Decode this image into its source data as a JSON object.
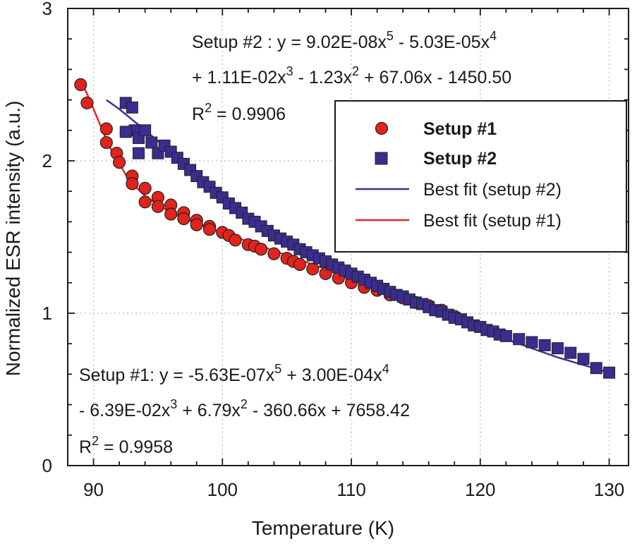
{
  "chart_data": {
    "type": "scatter",
    "xlabel": "Temperature (K)",
    "ylabel": "Normalized ESR intensity (a.u.)",
    "xlim": [
      88,
      131.5
    ],
    "ylim": [
      0,
      3
    ],
    "xticks": [
      90,
      100,
      110,
      120,
      130
    ],
    "yticks": [
      0,
      1,
      2,
      3
    ],
    "grid": true,
    "legend_position": "top-right",
    "colors": {
      "setup1": "#e0231c",
      "setup2": "#3a2d8f",
      "fit1": "#e8242a",
      "fit2": "#3f2f9a",
      "grid": "#bbbbbb",
      "axis": "#1a1a1a"
    },
    "series": [
      {
        "name": "Setup #1",
        "marker": "circle",
        "x": [
          89,
          89.5,
          91,
          91,
          91.8,
          92,
          93,
          93,
          94,
          94,
          95,
          95,
          96,
          96,
          97,
          97,
          98,
          98,
          99,
          99,
          100,
          100.5,
          101,
          102,
          102.5,
          103,
          104,
          105,
          105.5,
          106,
          107,
          108,
          109,
          110,
          111,
          112,
          113,
          114,
          115,
          116,
          117,
          118
        ],
        "y": [
          2.5,
          2.38,
          2.21,
          2.12,
          2.05,
          1.99,
          1.9,
          1.85,
          1.82,
          1.73,
          1.76,
          1.7,
          1.71,
          1.65,
          1.66,
          1.62,
          1.61,
          1.58,
          1.57,
          1.55,
          1.53,
          1.51,
          1.48,
          1.45,
          1.44,
          1.42,
          1.39,
          1.36,
          1.34,
          1.32,
          1.29,
          1.26,
          1.23,
          1.2,
          1.17,
          1.15,
          1.12,
          1.1,
          1.07,
          1.05,
          1.02,
          0.98
        ]
      },
      {
        "name": "Setup #2",
        "marker": "square",
        "x": [
          92.5,
          93,
          93.2,
          92.5,
          93.5,
          94.5,
          94,
          95,
          95.5,
          96,
          96.5,
          93.5,
          97,
          97.5,
          98,
          98.5,
          99,
          99.5,
          100,
          100.5,
          101,
          101.5,
          102,
          102.5,
          103,
          103.5,
          104,
          104.5,
          105,
          105.5,
          106,
          106.5,
          107,
          107.5,
          108,
          108.5,
          109,
          109.5,
          110,
          110.5,
          111,
          111.5,
          112,
          112.5,
          113,
          113.5,
          114,
          114.5,
          115,
          115.5,
          116,
          116.5,
          117,
          117.5,
          118,
          118.5,
          119,
          119.5,
          120,
          120.5,
          121,
          121.5,
          122,
          123,
          124,
          125,
          126,
          127,
          128,
          129,
          130
        ],
        "y": [
          2.38,
          2.35,
          2.2,
          2.19,
          2.15,
          2.12,
          2.2,
          2.05,
          2.1,
          2.06,
          2.02,
          2.05,
          1.98,
          1.94,
          1.9,
          1.86,
          1.83,
          1.79,
          1.76,
          1.72,
          1.69,
          1.66,
          1.62,
          1.6,
          1.57,
          1.54,
          1.51,
          1.49,
          1.47,
          1.45,
          1.42,
          1.4,
          1.38,
          1.36,
          1.34,
          1.32,
          1.3,
          1.28,
          1.26,
          1.24,
          1.22,
          1.2,
          1.18,
          1.16,
          1.14,
          1.12,
          1.11,
          1.09,
          1.07,
          1.06,
          1.04,
          1.02,
          1.01,
          0.99,
          0.97,
          0.96,
          0.94,
          0.92,
          0.91,
          0.89,
          0.88,
          0.86,
          0.85,
          0.83,
          0.81,
          0.79,
          0.77,
          0.74,
          0.7,
          0.64,
          0.61
        ]
      }
    ],
    "fits": [
      {
        "name": "Best fit (setup #2)",
        "x": [
          91,
          92,
          93,
          94,
          95,
          96,
          97,
          98,
          99,
          100,
          102,
          104,
          106,
          108,
          110,
          112,
          114,
          116,
          118,
          120,
          122,
          124,
          126,
          128,
          130
        ],
        "y": [
          2.4,
          2.34,
          2.27,
          2.2,
          2.13,
          2.06,
          1.99,
          1.92,
          1.85,
          1.78,
          1.64,
          1.52,
          1.41,
          1.31,
          1.23,
          1.15,
          1.08,
          1.01,
          0.95,
          0.89,
          0.83,
          0.77,
          0.71,
          0.66,
          0.61
        ]
      },
      {
        "name": "Best fit (setup #1)",
        "x": [
          89,
          89.5,
          90,
          90.5,
          91,
          91.5,
          92,
          92.5,
          93,
          93.5,
          94,
          95,
          96,
          97,
          98,
          99,
          100,
          102,
          104,
          106,
          108,
          110,
          112,
          114,
          116,
          118
        ],
        "y": [
          2.53,
          2.44,
          2.34,
          2.24,
          2.14,
          2.05,
          1.98,
          1.91,
          1.85,
          1.81,
          1.77,
          1.71,
          1.66,
          1.62,
          1.59,
          1.56,
          1.53,
          1.47,
          1.41,
          1.35,
          1.29,
          1.22,
          1.15,
          1.09,
          1.02,
          0.95
        ]
      }
    ],
    "legend": {
      "entries": [
        "Setup #1",
        "Setup #2",
        "Best fit (setup #2)",
        "Best fit (setup #1)"
      ]
    },
    "annotations": {
      "setup2": {
        "line1_a": "Setup #2 : y = 9.02E-08x",
        "line1_sup1": "5",
        "line1_b": " - 5.03E-05x",
        "line1_sup2": "4",
        "line2_a": "+ 1.11E-02x",
        "line2_sup1": "3",
        "line2_b": " - 1.23x",
        "line2_sup2": "2",
        "line2_c": " + 67.06x - 1450.50",
        "line3_a": "R",
        "line3_sup": "2",
        "line3_b": " = 0.9906"
      },
      "setup1": {
        "line1_a": "Setup #1: y = -5.63E-07x",
        "line1_sup1": "5",
        "line1_b": " + 3.00E-04x",
        "line1_sup2": "4",
        "line2_a": "- 6.39E-02x",
        "line2_sup1": "3",
        "line2_b": " + 6.79x",
        "line2_sup2": "2",
        "line2_c": " - 360.66x + 7658.42",
        "line3_a": "R",
        "line3_sup": "2",
        "line3_b": " = 0.9958"
      }
    }
  }
}
